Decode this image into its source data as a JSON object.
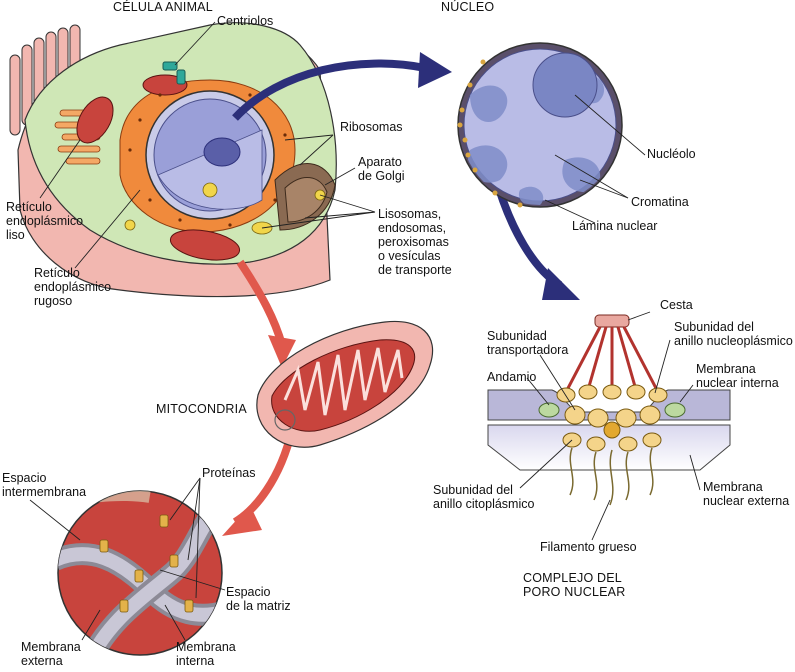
{
  "colors": {
    "cytoplasm": "#cfe7b6",
    "membrane_pink": "#f2b7b0",
    "er_orange": "#f08a3c",
    "nucleus": "#9a9fd8",
    "golgi": "#8a6a52",
    "mito_red": "#c8443d",
    "arrow_blue": "#2c2f7a",
    "arrow_red": "#e0584c",
    "pore_yellow": "#f4d48a",
    "membrane_lavender": "#b9b7d8"
  },
  "cell": {
    "title": "CÉLULA ANIMAL",
    "centriolos": "Centriolos",
    "ribosomas": "Ribosomas",
    "golgi": "Aparato\nde Golgi",
    "lisosomas": "Lisosomas,\nendosomas,\nperoxisomas\no vesículas\nde transporte",
    "rel": "Retículo\nendoplásmico\nliso",
    "rer": "Retículo\nendoplásmico\nrugoso"
  },
  "nucleus": {
    "title": "NÚCLEO",
    "nucleolo": "Nucléolo",
    "cromatina": "Cromatina",
    "lamina": "Lámina nuclear"
  },
  "mito": {
    "title": "MITOCONDRIA",
    "espacio_inter": "Espacio\nintermembrana",
    "proteinas": "Proteínas",
    "espacio_matriz": "Espacio\nde la matriz",
    "membrana_externa": "Membrana\nexterna",
    "membrana_interna": "Membrana\ninterna"
  },
  "pore": {
    "cesta": "Cesta",
    "subunidad_transportadora": "Subunidad\ntransportadora",
    "subunidad_nucleoplasmico": "Subunidad del\nanillo nucleoplásmico",
    "andamio": "Andamio",
    "membrana_nuclear_interna": "Membrana\nnuclear interna",
    "subunidad_citoplasmico": "Subunidad del\nanillo citoplásmico",
    "membrana_nuclear_externa": "Membrana\nnuclear externa",
    "filamento_grueso": "Filamento grueso",
    "title": "COMPLEJO DEL\nPORO NUCLEAR"
  }
}
